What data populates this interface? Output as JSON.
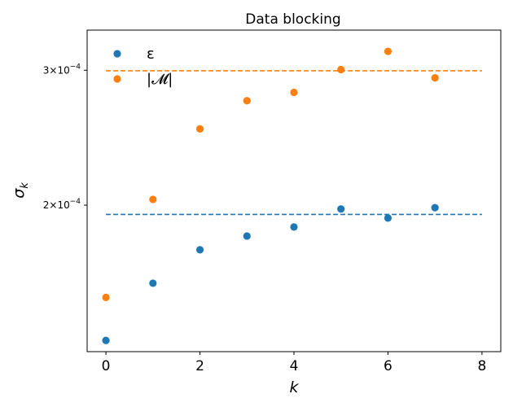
{
  "chart_data": {
    "type": "scatter",
    "title": "Data blocking",
    "xlabel": "k",
    "ylabel": "σ_k",
    "xlim": [
      -0.4,
      8.4
    ],
    "ylim": [
      0.0001288,
      0.0003384
    ],
    "y_scale": "log",
    "grid": false,
    "legend_placement": "top-left",
    "x_ticks": [
      {
        "value": 0,
        "label": "0"
      },
      {
        "value": 2,
        "label": "2"
      },
      {
        "value": 4,
        "label": "4"
      },
      {
        "value": 6,
        "label": "6"
      },
      {
        "value": 8,
        "label": "8"
      }
    ],
    "y_ticks": [
      {
        "value": 0.0002,
        "mantissa": "2",
        "base": "10",
        "exponent": "−4"
      },
      {
        "value": 0.0003,
        "mantissa": "3",
        "base": "10",
        "exponent": "−4"
      }
    ],
    "series": [
      {
        "name": "ε",
        "color": "#1f77b4",
        "x": [
          0,
          1,
          2,
          3,
          4,
          5,
          6,
          7
        ],
        "y": [
          0.0001332,
          0.0001582,
          0.0001749,
          0.0001823,
          0.0001873,
          0.0001977,
          0.0001924,
          0.0001985
        ],
        "reference_line": 0.0001945
      },
      {
        "name": "|𝓜|",
        "color": "#ff7f0e",
        "x": [
          0,
          1,
          2,
          3,
          4,
          5,
          6,
          7
        ],
        "y": [
          0.0001516,
          0.0002035,
          0.0002515,
          0.0002737,
          0.0002807,
          0.0003006,
          0.0003175,
          0.0002932
        ],
        "reference_line": 0.0002995
      }
    ]
  }
}
